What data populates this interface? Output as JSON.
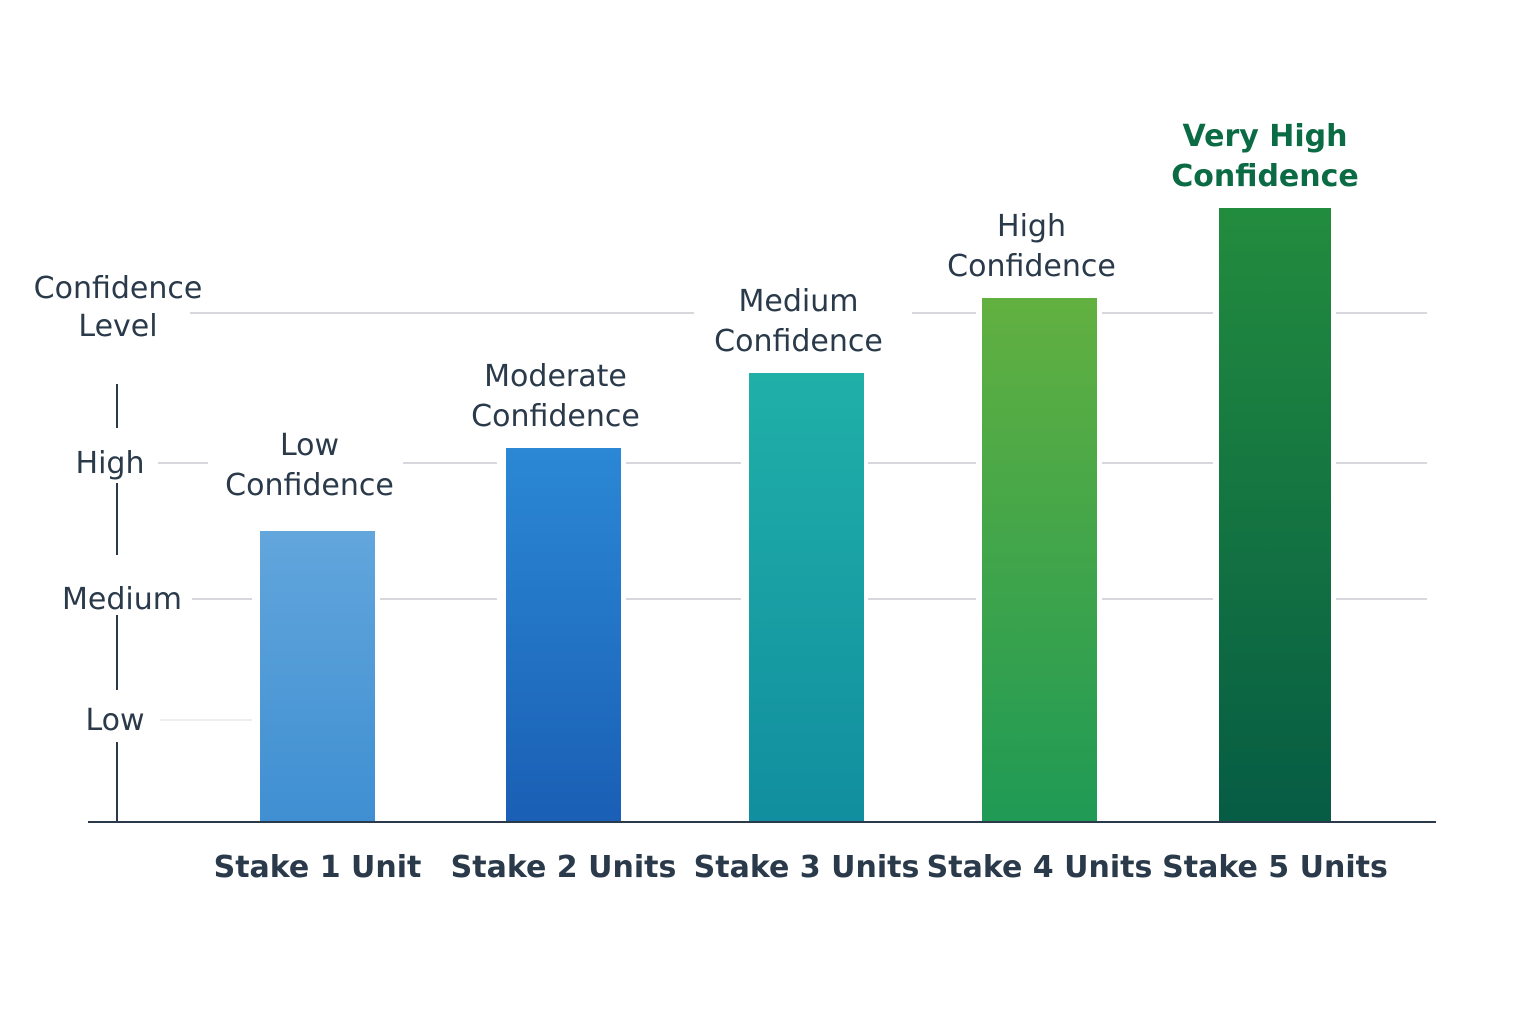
{
  "chart_data": {
    "type": "bar",
    "title": "",
    "xlabel": "",
    "ylabel": "Confidence Level",
    "y_ticks": [
      {
        "value": 1,
        "label": "Low"
      },
      {
        "value": 2,
        "label": "Medium"
      },
      {
        "value": 3,
        "label": "High"
      },
      {
        "value": 4,
        "label": ""
      }
    ],
    "ylim": [
      0,
      4.8
    ],
    "grid": true,
    "categories": [
      "Stake 1 Unit",
      "Stake 2 Units",
      "Stake 3 Units",
      "Stake 4 Units",
      "Stake 5 Units"
    ],
    "values": [
      2.5,
      3.1,
      3.6,
      4.1,
      4.7
    ],
    "bar_labels": [
      [
        "Low",
        "Confidence"
      ],
      [
        "Moderate",
        "Confidence"
      ],
      [
        "Medium",
        "Confidence"
      ],
      [
        "High",
        "Confidence"
      ],
      [
        "Very High",
        "Confidence"
      ]
    ],
    "colors": [
      [
        "#62a6dc",
        "#3f8fd2"
      ],
      [
        "#2b88d4",
        "#1a5fb5"
      ],
      [
        "#20b0a8",
        "#118e9f"
      ],
      [
        "#62b040",
        "#1f9a55"
      ],
      [
        "#228c3e",
        "#065c44"
      ]
    ],
    "label_colors": [
      "#2a3a4a",
      "#2a3a4a",
      "#2a3a4a",
      "#2a3a4a",
      "#0b6b45"
    ]
  }
}
